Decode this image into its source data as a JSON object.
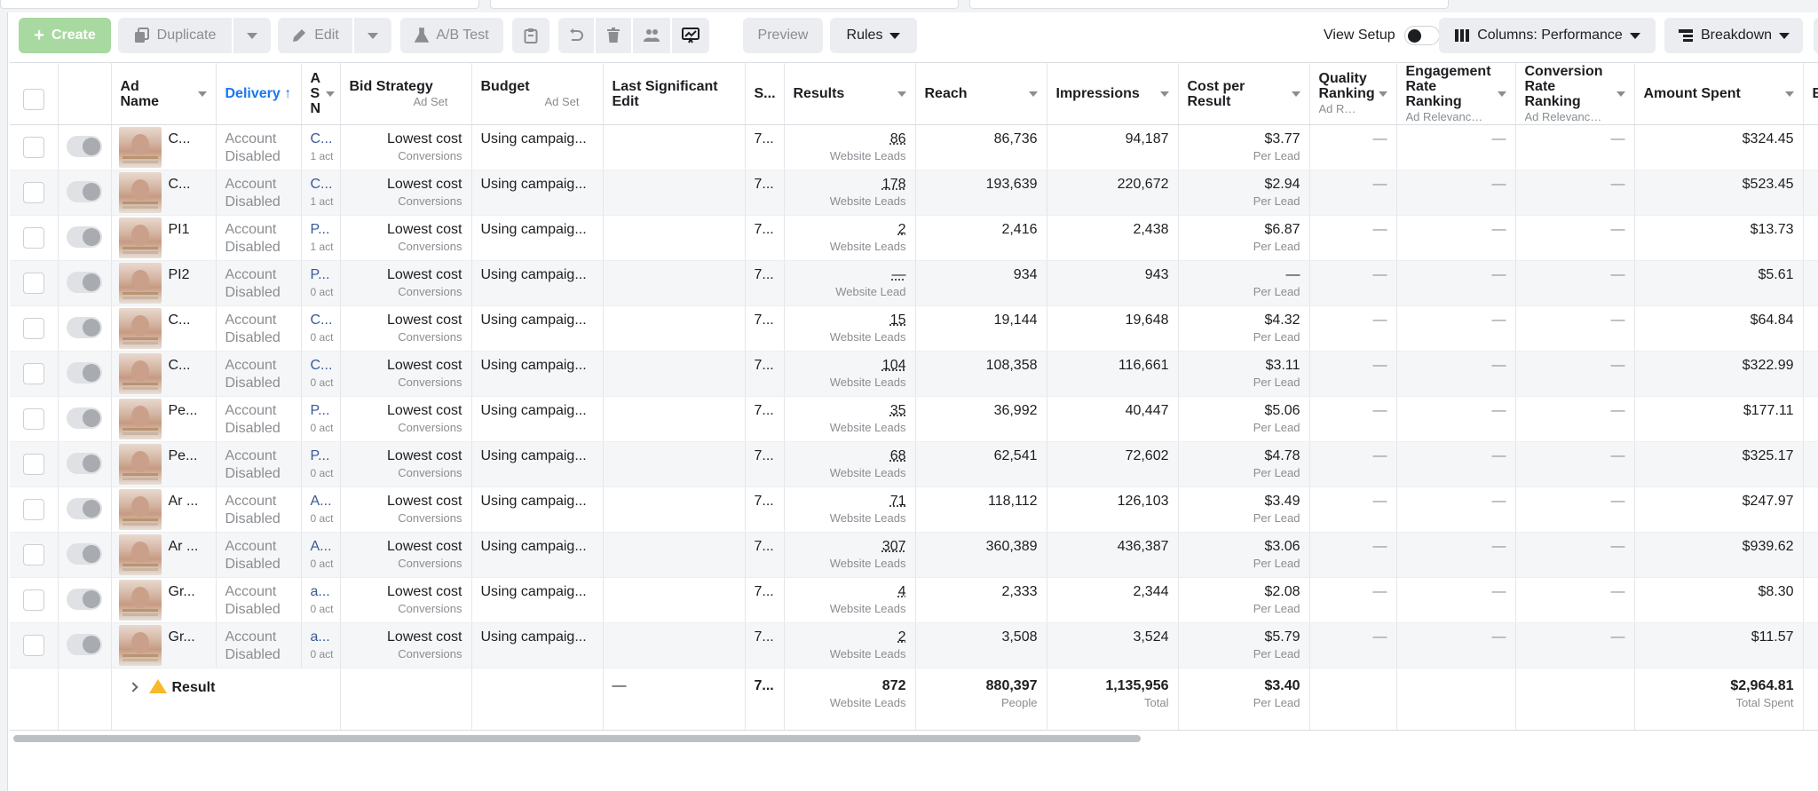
{
  "toolbar": {
    "create": "Create",
    "duplicate": "Duplicate",
    "edit": "Edit",
    "ab_test": "A/B Test",
    "preview": "Preview",
    "rules": "Rules",
    "view_setup": "View Setup",
    "columns": "Columns: Performance",
    "breakdown": "Breakdown"
  },
  "columns": {
    "ad_name": "Ad Name",
    "delivery": "Delivery",
    "set": "A S N",
    "bid_strategy": "Bid Strategy",
    "bid_sub": "Ad Set",
    "budget": "Budget",
    "budget_sub": "Ad Set",
    "last_edit": "Last Significant Edit",
    "s": "S...",
    "results": "Results",
    "reach": "Reach",
    "impressions": "Impressions",
    "cpr": "Cost per Result",
    "quality": "Quality Ranking",
    "quality_sub": "Ad Rele...",
    "engagement": "Engagement Rate Ranking",
    "engagement_sub": "Ad Relevance ...",
    "conversion": "Conversion Rate Ranking",
    "conversion_sub": "Ad Relevance ...",
    "amount": "Amount Spent",
    "e": "E"
  },
  "rows": [
    {
      "name": "C...",
      "delivery": "Account",
      "delivery2": "Disabled",
      "set": "C...",
      "set_sub": "1 act",
      "bid": "Lowest cost",
      "bid_sub": "Conversions",
      "budget": "Using campaig...",
      "s": "7...",
      "results": "86",
      "results_sub": "Website Leads",
      "reach": "86,736",
      "impressions": "94,187",
      "cpr": "$3.77",
      "cpr_sub": "Per Lead",
      "q": "—",
      "e": "—",
      "c": "—",
      "amount": "$324.45"
    },
    {
      "name": "C...",
      "delivery": "Account",
      "delivery2": "Disabled",
      "set": "C...",
      "set_sub": "1 act",
      "bid": "Lowest cost",
      "bid_sub": "Conversions",
      "budget": "Using campaig...",
      "s": "7...",
      "results": "178",
      "results_sub": "Website Leads",
      "reach": "193,639",
      "impressions": "220,672",
      "cpr": "$2.94",
      "cpr_sub": "Per Lead",
      "q": "—",
      "e": "—",
      "c": "—",
      "amount": "$523.45"
    },
    {
      "name": "PI1",
      "delivery": "Account",
      "delivery2": "Disabled",
      "set": "P...",
      "set_sub": "1 act",
      "bid": "Lowest cost",
      "bid_sub": "Conversions",
      "budget": "Using campaig...",
      "s": "7...",
      "results": "2",
      "results_sub": "Website Leads",
      "reach": "2,416",
      "impressions": "2,438",
      "cpr": "$6.87",
      "cpr_sub": "Per Lead",
      "q": "—",
      "e": "—",
      "c": "—",
      "amount": "$13.73"
    },
    {
      "name": "PI2",
      "delivery": "Account",
      "delivery2": "Disabled",
      "set": "P...",
      "set_sub": "0 act",
      "bid": "Lowest cost",
      "bid_sub": "Conversions",
      "budget": "Using campaig...",
      "s": "7...",
      "results": "—",
      "results_sub": "Website Lead",
      "reach": "934",
      "impressions": "943",
      "cpr": "—",
      "cpr_sub": "Per Lead",
      "q": "—",
      "e": "—",
      "c": "—",
      "amount": "$5.61"
    },
    {
      "name": "C...",
      "delivery": "Account",
      "delivery2": "Disabled",
      "set": "C...",
      "set_sub": "0 act",
      "bid": "Lowest cost",
      "bid_sub": "Conversions",
      "budget": "Using campaig...",
      "s": "7...",
      "results": "15",
      "results_sub": "Website Leads",
      "reach": "19,144",
      "impressions": "19,648",
      "cpr": "$4.32",
      "cpr_sub": "Per Lead",
      "q": "—",
      "e": "—",
      "c": "—",
      "amount": "$64.84"
    },
    {
      "name": "C...",
      "delivery": "Account",
      "delivery2": "Disabled",
      "set": "C...",
      "set_sub": "0 act",
      "bid": "Lowest cost",
      "bid_sub": "Conversions",
      "budget": "Using campaig...",
      "s": "7...",
      "results": "104",
      "results_sub": "Website Leads",
      "reach": "108,358",
      "impressions": "116,661",
      "cpr": "$3.11",
      "cpr_sub": "Per Lead",
      "q": "—",
      "e": "—",
      "c": "—",
      "amount": "$322.99"
    },
    {
      "name": "Pe...",
      "delivery": "Account",
      "delivery2": "Disabled",
      "set": "P...",
      "set_sub": "0 act",
      "bid": "Lowest cost",
      "bid_sub": "Conversions",
      "budget": "Using campaig...",
      "s": "7...",
      "results": "35",
      "results_sub": "Website Leads",
      "reach": "36,992",
      "impressions": "40,447",
      "cpr": "$5.06",
      "cpr_sub": "Per Lead",
      "q": "—",
      "e": "—",
      "c": "—",
      "amount": "$177.11"
    },
    {
      "name": "Pe...",
      "delivery": "Account",
      "delivery2": "Disabled",
      "set": "P...",
      "set_sub": "0 act",
      "bid": "Lowest cost",
      "bid_sub": "Conversions",
      "budget": "Using campaig...",
      "s": "7...",
      "results": "68",
      "results_sub": "Website Leads",
      "reach": "62,541",
      "impressions": "72,602",
      "cpr": "$4.78",
      "cpr_sub": "Per Lead",
      "q": "—",
      "e": "—",
      "c": "—",
      "amount": "$325.17"
    },
    {
      "name": "Ar ...",
      "delivery": "Account",
      "delivery2": "Disabled",
      "set": "A...",
      "set_sub": "0 act",
      "bid": "Lowest cost",
      "bid_sub": "Conversions",
      "budget": "Using campaig...",
      "s": "7...",
      "results": "71",
      "results_sub": "Website Leads",
      "reach": "118,112",
      "impressions": "126,103",
      "cpr": "$3.49",
      "cpr_sub": "Per Lead",
      "q": "—",
      "e": "—",
      "c": "—",
      "amount": "$247.97"
    },
    {
      "name": "Ar ...",
      "delivery": "Account",
      "delivery2": "Disabled",
      "set": "A...",
      "set_sub": "0 act",
      "bid": "Lowest cost",
      "bid_sub": "Conversions",
      "budget": "Using campaig...",
      "s": "7...",
      "results": "307",
      "results_sub": "Website Leads",
      "reach": "360,389",
      "impressions": "436,387",
      "cpr": "$3.06",
      "cpr_sub": "Per Lead",
      "q": "—",
      "e": "—",
      "c": "—",
      "amount": "$939.62"
    },
    {
      "name": "Gr...",
      "delivery": "Account",
      "delivery2": "Disabled",
      "set": "a...",
      "set_sub": "0 act",
      "bid": "Lowest cost",
      "bid_sub": "Conversions",
      "budget": "Using campaig...",
      "s": "7...",
      "results": "4",
      "results_sub": "Website Leads",
      "reach": "2,333",
      "impressions": "2,344",
      "cpr": "$2.08",
      "cpr_sub": "Per Lead",
      "q": "—",
      "e": "—",
      "c": "—",
      "amount": "$8.30"
    },
    {
      "name": "Gr...",
      "delivery": "Account",
      "delivery2": "Disabled",
      "set": "a...",
      "set_sub": "0 act",
      "bid": "Lowest cost",
      "bid_sub": "Conversions",
      "budget": "Using campaig...",
      "s": "7...",
      "results": "2",
      "results_sub": "Website Leads",
      "reach": "3,508",
      "impressions": "3,524",
      "cpr": "$5.79",
      "cpr_sub": "Per Lead",
      "q": "—",
      "e": "—",
      "c": "—",
      "amount": "$11.57"
    }
  ],
  "summary": {
    "label": "Result",
    "last_edit": "—",
    "s": "7...",
    "results": "872",
    "results_sub": "Website Leads",
    "reach": "880,397",
    "reach_sub": "People",
    "impressions": "1,135,956",
    "impressions_sub": "Total",
    "cpr": "$3.40",
    "cpr_sub": "Per Lead",
    "amount": "$2,964.81",
    "amount_sub": "Total Spent"
  },
  "colors": {
    "accent": "#1877f2",
    "create_button": "#a8d9a0",
    "warning": "#f7b928"
  },
  "icons": [
    "plus-icon",
    "duplicate-icon",
    "pencil-icon",
    "flask-icon",
    "clipboard-icon",
    "undo-icon",
    "trash-icon",
    "people-icon",
    "chart-edit-icon",
    "columns-icon",
    "breakdown-icon",
    "warning-icon"
  ]
}
